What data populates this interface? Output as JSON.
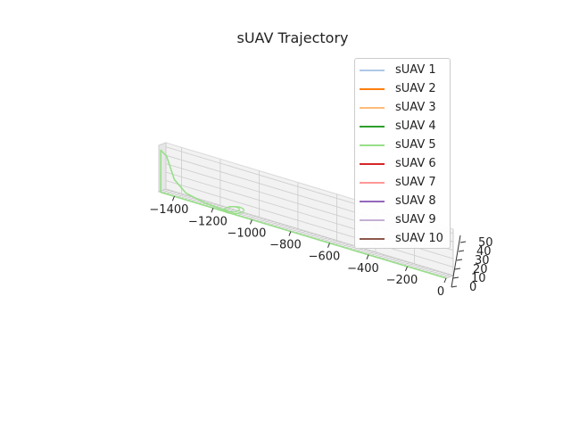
{
  "chart_data": {
    "type": "line",
    "title": "sUAV Trajectory",
    "projection": "3d",
    "xlabel": "",
    "ylabel": "",
    "zlabel": "",
    "x_ticks": [
      -1400,
      -1200,
      -1000,
      -800,
      -600,
      -400,
      -200,
      0
    ],
    "x_tick_labels": [
      "−1400",
      "−1200",
      "−1000",
      "−800",
      "−600",
      "−400",
      "−200",
      "0"
    ],
    "z_ticks": [
      0,
      10,
      20,
      30,
      40,
      50
    ],
    "xlim": [
      -1480,
      0
    ],
    "zlim": [
      0,
      55
    ],
    "grid": true,
    "legend_position": "upper-right",
    "series": [
      {
        "name": "sUAV 1",
        "color": "#aec7e8"
      },
      {
        "name": "sUAV 2",
        "color": "#ff7f0e"
      },
      {
        "name": "sUAV 3",
        "color": "#ffbb78"
      },
      {
        "name": "sUAV 4",
        "color": "#2ca02c"
      },
      {
        "name": "sUAV 5",
        "color": "#98df8a",
        "points": [
          [
            0,
            0,
            0
          ],
          [
            -200,
            0,
            0
          ],
          [
            -400,
            0,
            0
          ],
          [
            -600,
            0,
            0
          ],
          [
            -800,
            0,
            0
          ],
          [
            -1000,
            0,
            0
          ],
          [
            -1200,
            0,
            0
          ],
          [
            -1400,
            0,
            0
          ],
          [
            -1470,
            0,
            0
          ],
          [
            -1470,
            0,
            50
          ],
          [
            -1440,
            0,
            45
          ],
          [
            -1400,
            0,
            20
          ],
          [
            -1340,
            0,
            8
          ],
          [
            -1240,
            0,
            3
          ],
          [
            -1160,
            0,
            2
          ],
          [
            -1120,
            0,
            2
          ]
        ]
      },
      {
        "name": "sUAV 6",
        "color": "#d62728"
      },
      {
        "name": "sUAV 7",
        "color": "#ff9896"
      },
      {
        "name": "sUAV 8",
        "color": "#9467bd"
      },
      {
        "name": "sUAV 9",
        "color": "#c5b0d5"
      },
      {
        "name": "sUAV 10",
        "color": "#8c564b"
      }
    ]
  }
}
